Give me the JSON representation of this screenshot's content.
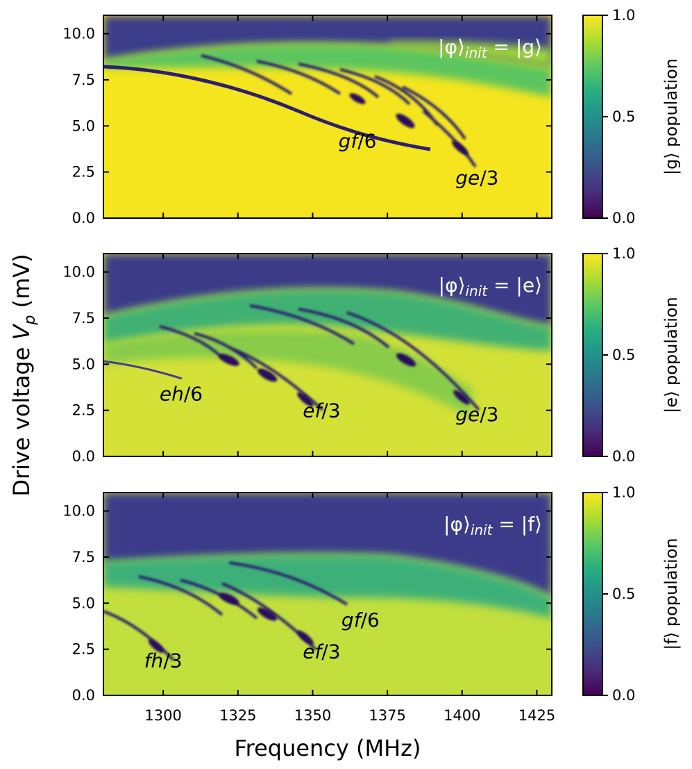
{
  "chart_data": {
    "type": "heatmap",
    "xlabel": "Frequency (MHz)",
    "ylabel": "Drive voltage V_p (mV)",
    "ylabel_main": "Drive voltage ",
    "ylabel_sym": "V",
    "ylabel_sub": "p",
    "ylabel_unit": " (mV)",
    "xlim": [
      1280,
      1430
    ],
    "ylim": [
      0,
      11
    ],
    "xticks": [
      1300,
      1325,
      1350,
      1375,
      1400,
      1425
    ],
    "yticks": [
      0.0,
      2.5,
      5.0,
      7.5,
      10.0
    ],
    "ytick_labels": [
      "0.0",
      "2.5",
      "5.0",
      "7.5",
      "10.0"
    ],
    "colormap": "viridis",
    "colorbar_range": [
      0.0,
      1.0
    ],
    "colorbar_ticks": [
      "0.0",
      "0.5",
      "1.0"
    ],
    "panels": [
      {
        "state_label": "|φ⟩init = |g⟩",
        "state_prefix": "|φ⟩",
        "state_sub": "init",
        "state_suffix": " = |g⟩",
        "colorbar_label": "|g⟩ population",
        "background_population": 0.95,
        "transitions": [
          {
            "label": "gf/6",
            "name": "gf",
            "denom": "/6",
            "x": 1365,
            "y": 4.2
          },
          {
            "label": "ge/3",
            "name": "ge",
            "denom": "/3",
            "x": 1405,
            "y": 2.2
          }
        ]
      },
      {
        "state_label": "|φ⟩init = |e⟩",
        "state_prefix": "|φ⟩",
        "state_sub": "init",
        "state_suffix": " = |e⟩",
        "colorbar_label": "|e⟩ population",
        "background_population": 0.85,
        "transitions": [
          {
            "label": "eh/6",
            "name": "eh",
            "denom": "/6",
            "x": 1306,
            "y": 3.4
          },
          {
            "label": "ef/3",
            "name": "ef",
            "denom": "/3",
            "x": 1353,
            "y": 2.5
          },
          {
            "label": "ge/3",
            "name": "ge",
            "denom": "/3",
            "x": 1405,
            "y": 2.3
          }
        ]
      },
      {
        "state_label": "|φ⟩init = |f⟩",
        "state_prefix": "|φ⟩",
        "state_sub": "init",
        "state_suffix": " = |f⟩",
        "colorbar_label": "|f⟩ population",
        "background_population": 0.8,
        "transitions": [
          {
            "label": "gf/6",
            "name": "gf",
            "denom": "/6",
            "x": 1366,
            "y": 4.1
          },
          {
            "label": "fh/3",
            "name": "fh",
            "denom": "/3",
            "x": 1300,
            "y": 1.9
          },
          {
            "label": "ef/3",
            "name": "ef",
            "denom": "/3",
            "x": 1353,
            "y": 2.4
          }
        ]
      }
    ]
  }
}
